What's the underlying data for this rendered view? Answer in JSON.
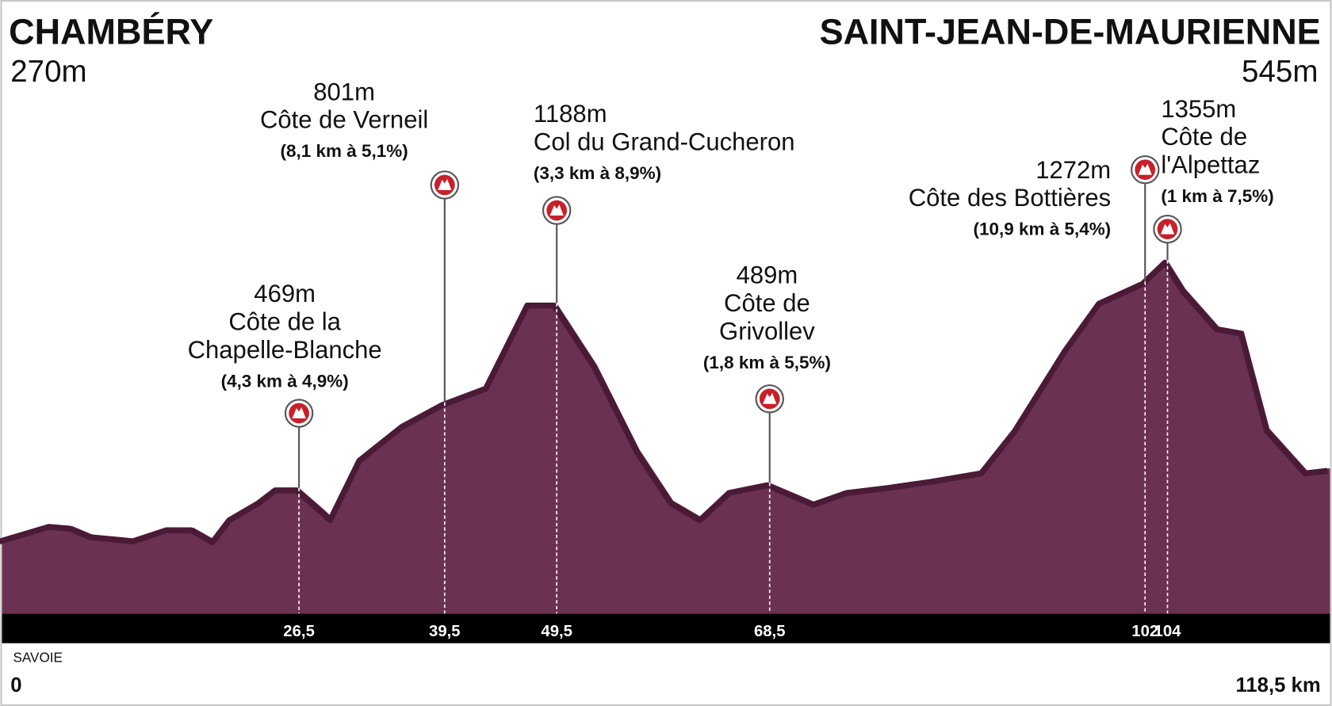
{
  "chart_data": {
    "type": "area",
    "start": {
      "name": "CHAMBÉRY",
      "altitude": {
        "value": 270,
        "label": "270m"
      }
    },
    "finish": {
      "name": "SAINT-JEAN-DE-MAURIENNE",
      "altitude": {
        "value": 545,
        "label": "545m"
      }
    },
    "region": "SAVOIE",
    "xlim": [
      0,
      118.5
    ],
    "ylim": [
      0,
      2400
    ],
    "xticks": [
      {
        "value": 0,
        "label": "0"
      },
      {
        "value": 118.5,
        "label": "118,5 km"
      }
    ],
    "color": "#6b3152",
    "ridge_color": "#4a1a37",
    "x": [
      0,
      4.4,
      6.3,
      8.1,
      11.9,
      14.9,
      17.1,
      19.0,
      20.5,
      23.1,
      24.6,
      26.5,
      28.7,
      29.5,
      32.1,
      35.9,
      39.5,
      43.4,
      47.1,
      49.5,
      53.1,
      56.9,
      59.9,
      62.5,
      65.1,
      68.5,
      72.6,
      75.6,
      79.4,
      83.1,
      87.6,
      90.6,
      95.1,
      98.1,
      102,
      104,
      105.6,
      108.6,
      110.8,
      113.1,
      116.5,
      118.5
    ],
    "values": [
      270,
      327,
      320,
      287,
      271,
      314,
      314,
      267,
      353,
      419,
      469,
      469,
      386,
      353,
      584,
      716,
      801,
      865,
      1188,
      1188,
      947,
      617,
      419,
      353,
      459,
      489,
      413,
      459,
      479,
      502,
      535,
      700,
      1013,
      1195,
      1272,
      1355,
      1244,
      1096,
      1079,
      700,
      535,
      545
    ],
    "climbs": [
      {
        "km": {
          "value": 26.5,
          "label": "26,5"
        },
        "altitude": {
          "value": 469,
          "label": "469m"
        },
        "name": [
          "Côte de la",
          "Chapelle-Blanche"
        ],
        "detail": "(4,3 km à 4,9%)"
      },
      {
        "km": {
          "value": 39.5,
          "label": "39,5"
        },
        "altitude": {
          "value": 801,
          "label": "801m"
        },
        "name": [
          "Côte de Verneil"
        ],
        "detail": "(8,1 km à 5,1%)"
      },
      {
        "km": {
          "value": 49.5,
          "label": "49,5"
        },
        "altitude": {
          "value": 1188,
          "label": "1188m"
        },
        "name": [
          "Col du Grand-Cucheron"
        ],
        "detail": "(3,3 km à 8,9%)"
      },
      {
        "km": {
          "value": 68.5,
          "label": "68,5"
        },
        "altitude": {
          "value": 489,
          "label": "489m"
        },
        "name": [
          "Côte de",
          "Grivollev"
        ],
        "detail": "(1,8 km à 5,5%)"
      },
      {
        "km": {
          "value": 102,
          "label": "102"
        },
        "altitude": {
          "value": 1272,
          "label": "1272m"
        },
        "name": [
          "Côte des Bottières"
        ],
        "detail": "(10,9 km à 5,4%)"
      },
      {
        "km": {
          "value": 104,
          "label": "104"
        },
        "altitude": {
          "value": 1355,
          "label": "1355m"
        },
        "name": [
          "Côte de",
          "l'Alpettaz"
        ],
        "detail": "(1 km à 7,5%)"
      }
    ]
  }
}
